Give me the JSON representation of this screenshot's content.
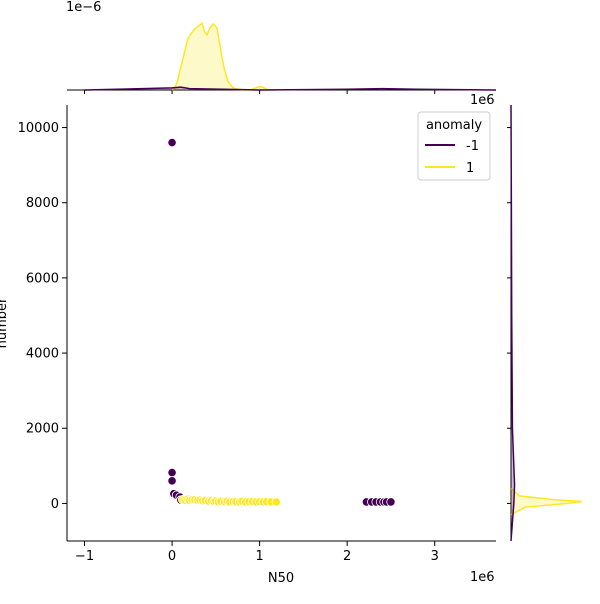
{
  "chart_data": {
    "type": "scatter",
    "title": "",
    "xlabel": "N50",
    "ylabel": "number",
    "x_unit_text": "1e6",
    "y_unit_text": "",
    "top_marginal_unit_text": "1e−6",
    "right_marginal_unit_text": "1e6",
    "xlim": [
      -1.2,
      3.7
    ],
    "ylim": [
      -1000,
      10600
    ],
    "x_ticks": [
      {
        "value": -1,
        "label": "−1"
      },
      {
        "value": 0,
        "label": "0"
      },
      {
        "value": 1,
        "label": "1"
      },
      {
        "value": 2,
        "label": "2"
      },
      {
        "value": 3,
        "label": "3"
      }
    ],
    "y_ticks": [
      {
        "value": 0,
        "label": "0"
      },
      {
        "value": 2000,
        "label": "2000"
      },
      {
        "value": 4000,
        "label": "4000"
      },
      {
        "value": 6000,
        "label": "6000"
      },
      {
        "value": 8000,
        "label": "8000"
      },
      {
        "value": 10000,
        "label": "10000"
      }
    ],
    "legend": {
      "title": "anomaly",
      "placement": "top-right",
      "entries": [
        {
          "label": "-1",
          "color": "#440154"
        },
        {
          "label": "1",
          "color": "#fde725"
        }
      ]
    },
    "series": [
      {
        "name": "-1",
        "color": "#440154",
        "points": [
          [
            0.0,
            9600
          ],
          [
            0.0,
            820
          ],
          [
            0.0,
            600
          ],
          [
            0.02,
            260
          ],
          [
            0.05,
            220
          ],
          [
            0.09,
            170
          ],
          [
            0.1,
            90
          ],
          [
            2.22,
            40
          ],
          [
            2.28,
            40
          ],
          [
            2.33,
            40
          ],
          [
            2.38,
            40
          ],
          [
            2.42,
            40
          ],
          [
            2.45,
            40
          ],
          [
            2.5,
            40
          ]
        ]
      },
      {
        "name": "1",
        "color": "#fde725",
        "points": [
          [
            0.12,
            100
          ],
          [
            0.15,
            90
          ],
          [
            0.18,
            110
          ],
          [
            0.2,
            80
          ],
          [
            0.23,
            95
          ],
          [
            0.26,
            100
          ],
          [
            0.29,
            85
          ],
          [
            0.32,
            90
          ],
          [
            0.35,
            70
          ],
          [
            0.38,
            80
          ],
          [
            0.42,
            60
          ],
          [
            0.45,
            75
          ],
          [
            0.48,
            50
          ],
          [
            0.5,
            65
          ],
          [
            0.53,
            40
          ],
          [
            0.56,
            55
          ],
          [
            0.6,
            45
          ],
          [
            0.63,
            60
          ],
          [
            0.66,
            40
          ],
          [
            0.7,
            50
          ],
          [
            0.73,
            45
          ],
          [
            0.77,
            40
          ],
          [
            0.8,
            55
          ],
          [
            0.84,
            40
          ],
          [
            0.88,
            45
          ],
          [
            0.92,
            50
          ],
          [
            0.96,
            40
          ],
          [
            1.0,
            45
          ],
          [
            1.04,
            40
          ],
          [
            1.08,
            45
          ],
          [
            1.13,
            40
          ],
          [
            1.19,
            40
          ]
        ]
      }
    ],
    "top_marginal": {
      "type": "kde",
      "series": [
        {
          "name": "1",
          "color": "#fde725",
          "x": [
            0.0,
            0.03,
            0.06,
            0.1,
            0.14,
            0.18,
            0.22,
            0.26,
            0.3,
            0.34,
            0.37,
            0.4,
            0.43,
            0.47,
            0.51,
            0.54,
            0.57,
            0.6,
            0.64,
            0.68,
            0.72,
            0.76,
            0.82,
            0.9,
            1.0,
            1.05,
            1.1,
            1.2
          ],
          "density": [
            0.0,
            0.03,
            0.12,
            0.32,
            0.52,
            0.72,
            0.8,
            0.86,
            0.9,
            0.94,
            0.82,
            0.78,
            0.87,
            0.93,
            0.88,
            0.68,
            0.46,
            0.28,
            0.12,
            0.05,
            0.02,
            0.01,
            0.0,
            0.0,
            0.05,
            0.03,
            0.0,
            0.0
          ]
        },
        {
          "name": "-1",
          "color": "#440154",
          "x": [
            -1.0,
            0.0,
            0.1,
            0.2,
            1.0,
            2.0,
            2.4,
            2.8,
            3.7
          ],
          "density": [
            0.0,
            0.03,
            0.04,
            0.02,
            0.0,
            0.01,
            0.02,
            0.01,
            0.0
          ]
        }
      ]
    },
    "right_marginal": {
      "type": "kde",
      "series": [
        {
          "name": "1",
          "color": "#fde725",
          "y": [
            -300,
            -100,
            0,
            50,
            100,
            200,
            400
          ],
          "density": [
            0.0,
            0.2,
            0.8,
            1.0,
            0.6,
            0.12,
            0.0
          ]
        },
        {
          "name": "-1",
          "color": "#440154",
          "y": [
            -1000,
            0,
            500,
            2000,
            5000,
            8000,
            10600
          ],
          "density": [
            0.0,
            0.04,
            0.05,
            0.02,
            0.01,
            0.005,
            0.0
          ]
        }
      ]
    }
  }
}
